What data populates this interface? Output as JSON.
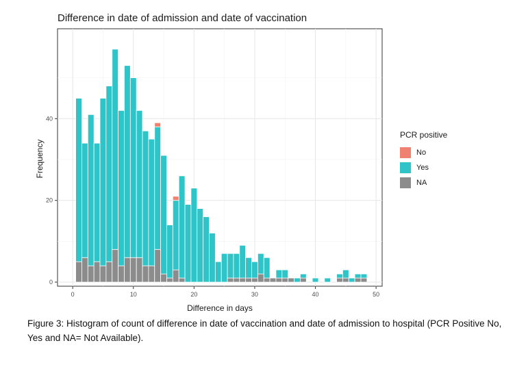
{
  "chart_data": {
    "type": "bar",
    "stacked": true,
    "title": "Difference in date of admission and date of vaccination",
    "xlabel": "Difference in days",
    "ylabel": "Frequency",
    "xlim": [
      -2.5,
      51
    ],
    "ylim": [
      -1,
      62
    ],
    "xticks": [
      0,
      10,
      20,
      30,
      40,
      50
    ],
    "yticks": [
      0,
      20,
      40
    ],
    "grid": true,
    "legend": {
      "title": "PCR positive",
      "placement": "right"
    },
    "x": [
      1,
      2,
      3,
      4,
      5,
      6,
      7,
      8,
      9,
      10,
      11,
      12,
      13,
      14,
      15,
      16,
      17,
      18,
      19,
      20,
      21,
      22,
      23,
      24,
      25,
      26,
      27,
      28,
      29,
      30,
      31,
      32,
      33,
      34,
      35,
      36,
      37,
      38,
      39,
      40,
      41,
      42,
      43,
      44,
      45,
      46,
      47,
      48
    ],
    "series": [
      {
        "name": "NA",
        "color": "#8c8c8c",
        "values": [
          5,
          6,
          4,
          5,
          4,
          5,
          8,
          4,
          6,
          6,
          6,
          4,
          4,
          8,
          2,
          1,
          3,
          1,
          0,
          0,
          0,
          0,
          0,
          0,
          0,
          1,
          1,
          1,
          1,
          1,
          2,
          1,
          1,
          1,
          1,
          1,
          0,
          1,
          0,
          0,
          0,
          0,
          0,
          1,
          1,
          0,
          1,
          1
        ]
      },
      {
        "name": "Yes",
        "color": "#2ec4c8",
        "values": [
          40,
          28,
          37,
          29,
          41,
          43,
          49,
          38,
          47,
          44,
          36,
          33,
          31,
          30,
          29,
          13,
          17,
          25,
          19,
          23,
          18,
          16,
          12,
          5,
          7,
          6,
          6,
          8,
          5,
          4,
          5,
          5,
          0,
          2,
          2,
          0,
          1,
          1,
          0,
          1,
          0,
          1,
          0,
          1,
          2,
          1,
          1,
          1
        ]
      },
      {
        "name": "No",
        "color": "#f08070",
        "values": [
          0,
          0,
          0,
          0,
          0,
          0,
          0,
          0,
          0,
          0,
          0,
          0,
          0,
          1,
          0,
          0,
          1,
          0,
          0,
          0,
          0,
          0,
          0,
          0,
          0,
          0,
          0,
          0,
          0,
          0,
          0,
          0,
          0,
          0,
          0,
          0,
          0,
          0,
          0,
          0,
          0,
          0,
          0,
          0,
          0,
          0,
          0,
          0
        ]
      }
    ],
    "legend_order": [
      "No",
      "Yes",
      "NA"
    ]
  },
  "caption": "Figure 3: Histogram of count of difference in date of vaccination and date of admission to hospital (PCR Positive No, Yes and NA= Not Available)."
}
